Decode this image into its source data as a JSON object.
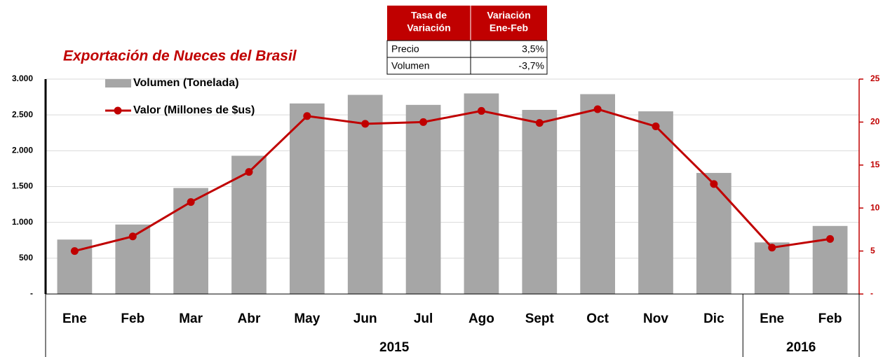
{
  "chart_data": {
    "type": "bar-line",
    "title": "Exportación de Nueces del Brasil",
    "categories": [
      "Ene",
      "Feb",
      "Mar",
      "Abr",
      "May",
      "Jun",
      "Jul",
      "Ago",
      "Sept",
      "Oct",
      "Nov",
      "Dic",
      "Ene",
      "Feb"
    ],
    "year_groups": [
      {
        "label": "2015",
        "count": 12
      },
      {
        "label": "2016",
        "count": 2
      }
    ],
    "series": [
      {
        "name": "Volumen (Tonelada)",
        "type": "bar",
        "color": "#a6a6a6",
        "values": [
          760,
          970,
          1480,
          1930,
          2660,
          2780,
          2640,
          2800,
          2570,
          2790,
          2550,
          1690,
          720,
          950
        ]
      },
      {
        "name": "Valor (Millones de $us)",
        "type": "line",
        "axis": "y2",
        "color": "#c00000",
        "values": [
          5.0,
          6.7,
          10.7,
          14.2,
          20.7,
          19.8,
          20.0,
          21.3,
          19.9,
          21.5,
          19.5,
          12.8,
          5.4,
          6.4
        ]
      }
    ],
    "ylim": [
      0,
      3000
    ],
    "yticks": [
      {
        "value": 0,
        "label": "-"
      },
      500,
      {
        "value": 1000,
        "label": "1.000"
      },
      {
        "value": 1500,
        "label": "1.500"
      },
      {
        "value": 2000,
        "label": "2.000"
      },
      {
        "value": 2500,
        "label": "2.500"
      },
      {
        "value": 3000,
        "label": "3.000"
      }
    ],
    "y2lim": [
      0,
      25
    ],
    "y2ticks": [
      {
        "value": 0,
        "label": "-"
      },
      5,
      10,
      15,
      20,
      25
    ],
    "grid": true,
    "legend": "top-left",
    "table": {
      "headers": [
        [
          "Tasa de",
          "Variación"
        ],
        [
          "Variación",
          "Ene-Feb"
        ]
      ],
      "rows": [
        [
          "Precio",
          "3,5%"
        ],
        [
          "Volumen",
          "-3,7%"
        ]
      ]
    }
  }
}
